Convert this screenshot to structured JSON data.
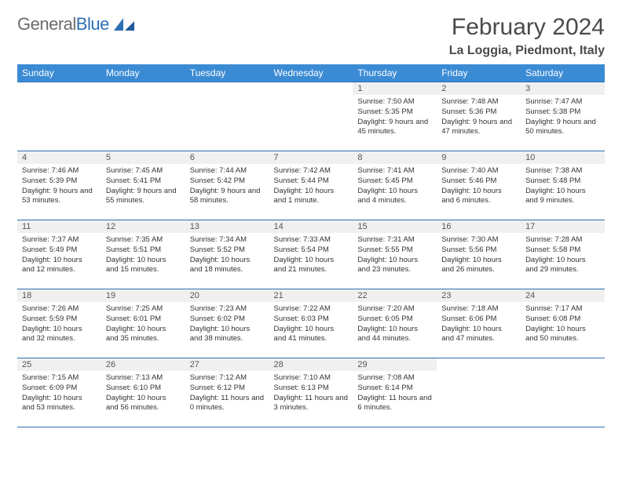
{
  "brand": {
    "part1": "General",
    "part2": "Blue",
    "accent": "#2c6fb5"
  },
  "title": "February 2024",
  "location": "La Loggia, Piedmont, Italy",
  "header_bg": "#3b8bd4",
  "weekdays": [
    "Sunday",
    "Monday",
    "Tuesday",
    "Wednesday",
    "Thursday",
    "Friday",
    "Saturday"
  ],
  "weeks": [
    [
      null,
      null,
      null,
      null,
      {
        "n": "1",
        "sr": "7:50 AM",
        "ss": "5:35 PM",
        "dl": "9 hours and 45 minutes."
      },
      {
        "n": "2",
        "sr": "7:48 AM",
        "ss": "5:36 PM",
        "dl": "9 hours and 47 minutes."
      },
      {
        "n": "3",
        "sr": "7:47 AM",
        "ss": "5:38 PM",
        "dl": "9 hours and 50 minutes."
      }
    ],
    [
      {
        "n": "4",
        "sr": "7:46 AM",
        "ss": "5:39 PM",
        "dl": "9 hours and 53 minutes."
      },
      {
        "n": "5",
        "sr": "7:45 AM",
        "ss": "5:41 PM",
        "dl": "9 hours and 55 minutes."
      },
      {
        "n": "6",
        "sr": "7:44 AM",
        "ss": "5:42 PM",
        "dl": "9 hours and 58 minutes."
      },
      {
        "n": "7",
        "sr": "7:42 AM",
        "ss": "5:44 PM",
        "dl": "10 hours and 1 minute."
      },
      {
        "n": "8",
        "sr": "7:41 AM",
        "ss": "5:45 PM",
        "dl": "10 hours and 4 minutes."
      },
      {
        "n": "9",
        "sr": "7:40 AM",
        "ss": "5:46 PM",
        "dl": "10 hours and 6 minutes."
      },
      {
        "n": "10",
        "sr": "7:38 AM",
        "ss": "5:48 PM",
        "dl": "10 hours and 9 minutes."
      }
    ],
    [
      {
        "n": "11",
        "sr": "7:37 AM",
        "ss": "5:49 PM",
        "dl": "10 hours and 12 minutes."
      },
      {
        "n": "12",
        "sr": "7:35 AM",
        "ss": "5:51 PM",
        "dl": "10 hours and 15 minutes."
      },
      {
        "n": "13",
        "sr": "7:34 AM",
        "ss": "5:52 PM",
        "dl": "10 hours and 18 minutes."
      },
      {
        "n": "14",
        "sr": "7:33 AM",
        "ss": "5:54 PM",
        "dl": "10 hours and 21 minutes."
      },
      {
        "n": "15",
        "sr": "7:31 AM",
        "ss": "5:55 PM",
        "dl": "10 hours and 23 minutes."
      },
      {
        "n": "16",
        "sr": "7:30 AM",
        "ss": "5:56 PM",
        "dl": "10 hours and 26 minutes."
      },
      {
        "n": "17",
        "sr": "7:28 AM",
        "ss": "5:58 PM",
        "dl": "10 hours and 29 minutes."
      }
    ],
    [
      {
        "n": "18",
        "sr": "7:26 AM",
        "ss": "5:59 PM",
        "dl": "10 hours and 32 minutes."
      },
      {
        "n": "19",
        "sr": "7:25 AM",
        "ss": "6:01 PM",
        "dl": "10 hours and 35 minutes."
      },
      {
        "n": "20",
        "sr": "7:23 AM",
        "ss": "6:02 PM",
        "dl": "10 hours and 38 minutes."
      },
      {
        "n": "21",
        "sr": "7:22 AM",
        "ss": "6:03 PM",
        "dl": "10 hours and 41 minutes."
      },
      {
        "n": "22",
        "sr": "7:20 AM",
        "ss": "6:05 PM",
        "dl": "10 hours and 44 minutes."
      },
      {
        "n": "23",
        "sr": "7:18 AM",
        "ss": "6:06 PM",
        "dl": "10 hours and 47 minutes."
      },
      {
        "n": "24",
        "sr": "7:17 AM",
        "ss": "6:08 PM",
        "dl": "10 hours and 50 minutes."
      }
    ],
    [
      {
        "n": "25",
        "sr": "7:15 AM",
        "ss": "6:09 PM",
        "dl": "10 hours and 53 minutes."
      },
      {
        "n": "26",
        "sr": "7:13 AM",
        "ss": "6:10 PM",
        "dl": "10 hours and 56 minutes."
      },
      {
        "n": "27",
        "sr": "7:12 AM",
        "ss": "6:12 PM",
        "dl": "11 hours and 0 minutes."
      },
      {
        "n": "28",
        "sr": "7:10 AM",
        "ss": "6:13 PM",
        "dl": "11 hours and 3 minutes."
      },
      {
        "n": "29",
        "sr": "7:08 AM",
        "ss": "6:14 PM",
        "dl": "11 hours and 6 minutes."
      },
      null,
      null
    ]
  ],
  "labels": {
    "sunrise": "Sunrise: ",
    "sunset": "Sunset: ",
    "daylight": "Daylight: "
  }
}
